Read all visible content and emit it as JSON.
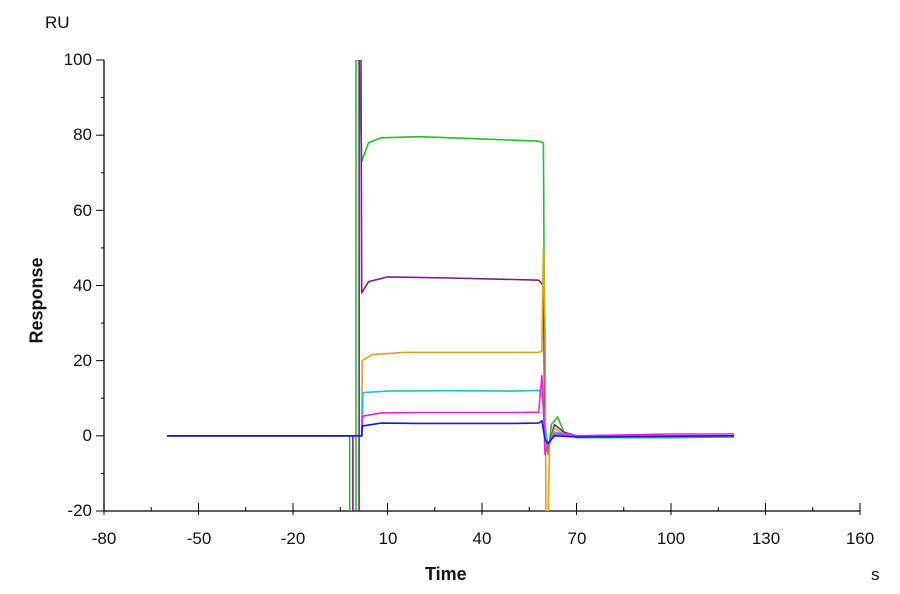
{
  "chart_data": {
    "type": "line",
    "title": "",
    "xlabel": "Time",
    "xunit": "s",
    "ylabel": "Response",
    "yunit": "RU",
    "xlim": [
      -80,
      160
    ],
    "ylim": [
      -20,
      100
    ],
    "x_ticks": [
      -80,
      -50,
      -20,
      10,
      40,
      70,
      100,
      130,
      160
    ],
    "y_ticks": [
      -20,
      0,
      20,
      40,
      60,
      80,
      100
    ],
    "grid": false,
    "legend": null,
    "series": [
      {
        "name": "curve-green",
        "color": "#22c322",
        "plateau": 78.5,
        "points": [
          [
            -60,
            0
          ],
          [
            -2,
            0
          ],
          [
            -2,
            -20
          ],
          [
            0,
            -20
          ],
          [
            0,
            100
          ],
          [
            1,
            100
          ],
          [
            1.8,
            73
          ],
          [
            4,
            78
          ],
          [
            8,
            79.3
          ],
          [
            20,
            79.6
          ],
          [
            40,
            79
          ],
          [
            58,
            78.4
          ],
          [
            59.5,
            78
          ],
          [
            60,
            0
          ],
          [
            61,
            -5
          ],
          [
            62,
            3
          ],
          [
            64,
            5
          ],
          [
            66,
            1
          ],
          [
            70,
            -0.5
          ],
          [
            100,
            -0.5
          ],
          [
            120,
            -0.3
          ]
        ]
      },
      {
        "name": "curve-purple",
        "color": "#7b1b91",
        "plateau": 41.5,
        "points": [
          [
            -60,
            0
          ],
          [
            -1,
            0
          ],
          [
            -1,
            -20
          ],
          [
            1,
            -20
          ],
          [
            1,
            100
          ],
          [
            1.6,
            100
          ],
          [
            1.8,
            38
          ],
          [
            4,
            41
          ],
          [
            10,
            42.3
          ],
          [
            30,
            42
          ],
          [
            50,
            41.6
          ],
          [
            58,
            41.4
          ],
          [
            59.5,
            40
          ],
          [
            60,
            0
          ],
          [
            61,
            -3
          ],
          [
            63,
            3
          ],
          [
            66,
            1
          ],
          [
            70,
            0
          ],
          [
            120,
            0
          ]
        ]
      },
      {
        "name": "curve-orange",
        "color": "#e0a020",
        "plateau": 22.2,
        "points": [
          [
            -60,
            0
          ],
          [
            1.8,
            0
          ],
          [
            2,
            20
          ],
          [
            5,
            21.6
          ],
          [
            15,
            22.2
          ],
          [
            40,
            22.2
          ],
          [
            58,
            22.2
          ],
          [
            59,
            22.5
          ],
          [
            59.5,
            50
          ],
          [
            60,
            30
          ],
          [
            60.3,
            -20
          ],
          [
            61,
            -20
          ],
          [
            61.5,
            -2
          ],
          [
            63,
            2
          ],
          [
            66,
            0.5
          ],
          [
            70,
            0
          ],
          [
            120,
            0
          ]
        ]
      },
      {
        "name": "curve-cyan",
        "color": "#20c0c8",
        "plateau": 12.0,
        "points": [
          [
            -60,
            0
          ],
          [
            2,
            0
          ],
          [
            2.2,
            11.5
          ],
          [
            10,
            11.9
          ],
          [
            30,
            12
          ],
          [
            50,
            11.9
          ],
          [
            58,
            12.1
          ],
          [
            59,
            11
          ],
          [
            60,
            3
          ],
          [
            61,
            -3
          ],
          [
            63,
            1
          ],
          [
            70,
            0
          ],
          [
            120,
            0
          ]
        ]
      },
      {
        "name": "curve-magenta",
        "color": "#ee20e0",
        "plateau": 6.2,
        "points": [
          [
            -60,
            0
          ],
          [
            1.8,
            0
          ],
          [
            2,
            5.2
          ],
          [
            8,
            6.1
          ],
          [
            20,
            6.2
          ],
          [
            50,
            6.2
          ],
          [
            58,
            6.3
          ],
          [
            59,
            16
          ],
          [
            59.5,
            8
          ],
          [
            60,
            -5
          ],
          [
            61,
            -2
          ],
          [
            63,
            0.5
          ],
          [
            70,
            0
          ],
          [
            100,
            0.5
          ],
          [
            120,
            0.5
          ]
        ]
      },
      {
        "name": "curve-blue",
        "color": "#1818d8",
        "plateau": 3.0,
        "points": [
          [
            -60,
            0
          ],
          [
            1.8,
            0
          ],
          [
            2,
            2.6
          ],
          [
            8,
            3.4
          ],
          [
            20,
            3.3
          ],
          [
            50,
            3.3
          ],
          [
            58,
            3.4
          ],
          [
            59,
            4
          ],
          [
            60,
            -1
          ],
          [
            61,
            -2
          ],
          [
            63,
            0
          ],
          [
            70,
            -0.3
          ],
          [
            120,
            0
          ]
        ]
      }
    ]
  },
  "axes": {
    "y_unit_label": "RU",
    "y_title": "Response",
    "x_title": "Time",
    "x_unit_label": "s",
    "y_tick_labels": [
      "100",
      "80",
      "60",
      "40",
      "20",
      "0",
      "-20"
    ],
    "x_tick_labels": [
      "-80",
      "-50",
      "-20",
      "10",
      "40",
      "70",
      "100",
      "130",
      "160"
    ]
  }
}
